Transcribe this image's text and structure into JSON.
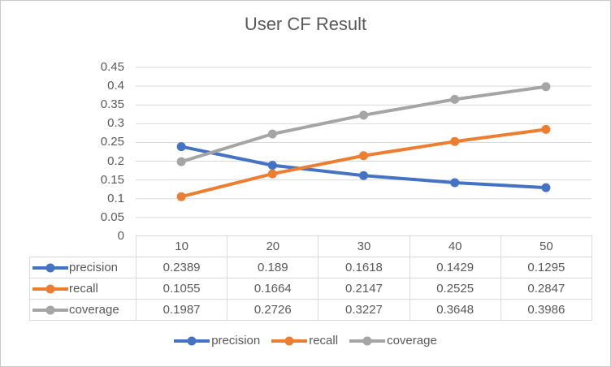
{
  "title": "User CF Result",
  "palette": {
    "text": "#595959",
    "grid": "#d9d9d9",
    "table_border": "#d9d9d9",
    "precision": "#4472C4",
    "recall": "#ED7D31",
    "coverage": "#A5A5A5"
  },
  "chart_data": {
    "type": "line",
    "title": "User CF Result",
    "categories": [
      "10",
      "20",
      "30",
      "40",
      "50"
    ],
    "series": [
      {
        "name": "precision",
        "color": "#4472C4",
        "values": [
          0.2389,
          0.189,
          0.1618,
          0.1429,
          0.1295
        ]
      },
      {
        "name": "recall",
        "color": "#ED7D31",
        "values": [
          0.1055,
          0.1664,
          0.2147,
          0.2525,
          0.2847
        ]
      },
      {
        "name": "coverage",
        "color": "#A5A5A5",
        "values": [
          0.1987,
          0.2726,
          0.3227,
          0.3648,
          0.3986
        ]
      }
    ],
    "xlabel": "",
    "ylabel": "",
    "ylim": [
      0,
      0.45
    ],
    "yticks": [
      "0",
      "0.05",
      "0.1",
      "0.15",
      "0.2",
      "0.25",
      "0.3",
      "0.35",
      "0.4",
      "0.45"
    ],
    "grid": true,
    "marker": "circle",
    "legend_position": "bottom",
    "data_table_shown": true
  },
  "table": {
    "col_headers": [
      "10",
      "20",
      "30",
      "40",
      "50"
    ],
    "rows": [
      {
        "label": "precision",
        "values": [
          "0.2389",
          "0.189",
          "0.1618",
          "0.1429",
          "0.1295"
        ]
      },
      {
        "label": "recall",
        "values": [
          "0.1055",
          "0.1664",
          "0.2147",
          "0.2525",
          "0.2847"
        ]
      },
      {
        "label": "coverage",
        "values": [
          "0.1987",
          "0.2726",
          "0.3227",
          "0.3648",
          "0.3986"
        ]
      }
    ]
  },
  "legend": {
    "items": [
      "precision",
      "recall",
      "coverage"
    ]
  }
}
